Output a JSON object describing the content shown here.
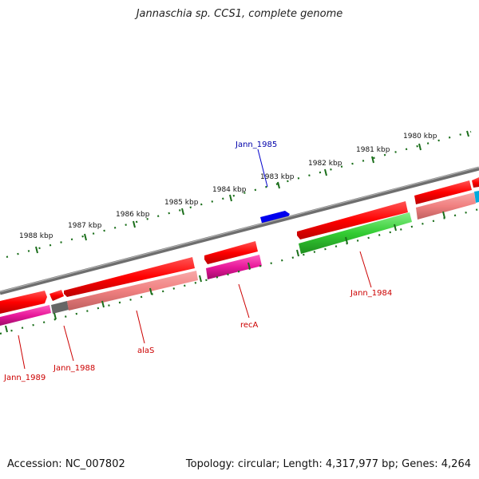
{
  "title": "Jannaschia sp. CCS1, complete genome",
  "footer": {
    "accession": "Accession: NC_007802",
    "stats": "Topology: circular; Length: 4,317,977 bp; Genes: 4,264"
  },
  "kbp_labels": [
    "1980 kbp",
    "1981 kbp",
    "1982 kbp",
    "1983 kbp",
    "1984 kbp",
    "1985 kbp",
    "1986 kbp",
    "1987 kbp",
    "1988 kbp"
  ],
  "gene_labels": [
    "Jann_1985",
    "Jann_1984",
    "recA",
    "alaS",
    "Jann_1988",
    "Jann_1989"
  ],
  "colors": {
    "forward_cds": "#ff0000",
    "reverse_cds": "#f08080",
    "magenta_feature": "#e8189a",
    "green_feature": "#33cc33",
    "blue_feature": "#0000ee",
    "cyan_feature": "#00aadd",
    "gray_feature": "#666666",
    "label_red": "#cc0000",
    "label_blue": "#0000aa",
    "tick_green": "#1a6e1a",
    "backbone": "#808080"
  }
}
